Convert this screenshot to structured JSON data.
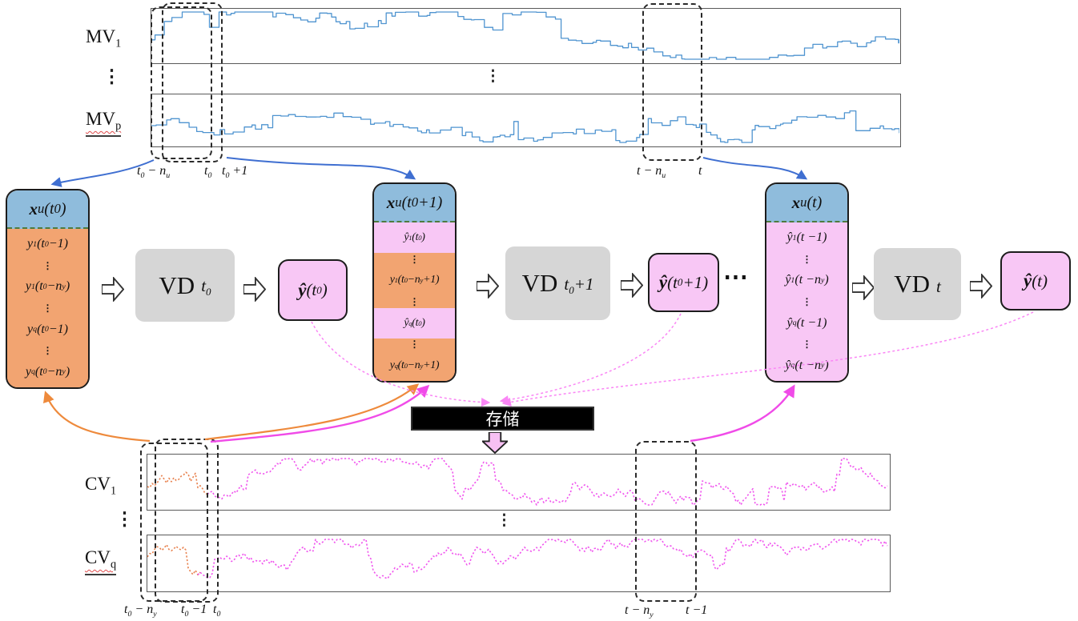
{
  "colors": {
    "header_blue": "#8fbcdc",
    "body_orange": "#f2a471",
    "body_pink": "#f8c7f5",
    "vd_gray": "#d6d6d6",
    "mv_line": "#4f94d0",
    "cv_line": "#f055ee",
    "cv_line_start": "#e8824f",
    "arrow_blue": "#3f6fd1",
    "arrow_orange": "#ee8a3c",
    "arrow_magenta": "#f04be8",
    "arrow_pink_dashed": "#fa86f5",
    "separator_green": "#4e7b3f",
    "storage_bg": "#000000",
    "storage_text": "#ffffff"
  },
  "signals": {
    "mv_top_label": "MV_{1}",
    "mv_bottom_label": "MV_{p}",
    "cv_top_label": "CV_{1}",
    "cv_bottom_label": "CV_{q}",
    "vdots": "⋮"
  },
  "time_axis": {
    "top_left": [
      "t_{0} − n_{u}",
      "t_{0}",
      "t_{0} +1"
    ],
    "top_right": [
      "t − n_{u}",
      "t"
    ],
    "bottom_left": [
      "t_{0} − n_{y}",
      "t_{0} −1",
      "t_{0}"
    ],
    "bottom_right": [
      "t − n_{y}",
      "t −1"
    ]
  },
  "stages": [
    {
      "header": "**x**_{u}(t_{0})",
      "rows": [
        {
          "text": "y_{1}(t_{0} −1)",
          "bg": "orange"
        },
        {
          "text": "⋮",
          "bg": "orange"
        },
        {
          "text": "y_{1}(t_{0} −n_{y})",
          "bg": "orange"
        },
        {
          "text": "⋮",
          "bg": "orange"
        },
        {
          "text": "y_{q}(t_{0} −1)",
          "bg": "orange"
        },
        {
          "text": "⋮",
          "bg": "orange"
        },
        {
          "text": "y_{q}(t_{0} −n_{y})",
          "bg": "orange"
        }
      ],
      "vd_name": "VD",
      "vd_time": "t_{0}",
      "out": "**ŷ** (t_{0} )"
    },
    {
      "header": "**x**_{u}(t_{0} +1)",
      "rows": [
        {
          "text": "ŷ_{1}(t_{0})",
          "bg": "pink"
        },
        {
          "text": "⋮",
          "bg": "orange"
        },
        {
          "text": "y_{1}(t_{0}−n_{y} +1)",
          "bg": "orange"
        },
        {
          "text": "⋮",
          "bg": "orange"
        },
        {
          "text": "ŷ_{q}(t_{0})",
          "bg": "pink"
        },
        {
          "text": "⋮",
          "bg": "orange"
        },
        {
          "text": "y_{q}(t_{0}−n_{y} +1)",
          "bg": "orange"
        }
      ],
      "vd_name": "VD",
      "vd_time": "t_{0}+1",
      "out": "**ŷ**(t_{0} +1)"
    },
    {
      "header": "**x**_{u}(t)",
      "rows": [
        {
          "text": "ŷ_{1}(t −1)",
          "bg": "pink"
        },
        {
          "text": "⋮",
          "bg": "pink"
        },
        {
          "text": "ŷ_{1}(t −n_{y})",
          "bg": "pink"
        },
        {
          "text": "⋮",
          "bg": "pink"
        },
        {
          "text": "ŷ_{q}(t −1)",
          "bg": "pink"
        },
        {
          "text": "⋮",
          "bg": "pink"
        },
        {
          "text": "ŷ_{q}(t −n_{y})",
          "bg": "pink"
        }
      ],
      "vd_name": "VD",
      "vd_time": "t",
      "out": "**ŷ** (t)"
    }
  ],
  "ellipsis": "⋯",
  "storage": {
    "label": "存储"
  }
}
